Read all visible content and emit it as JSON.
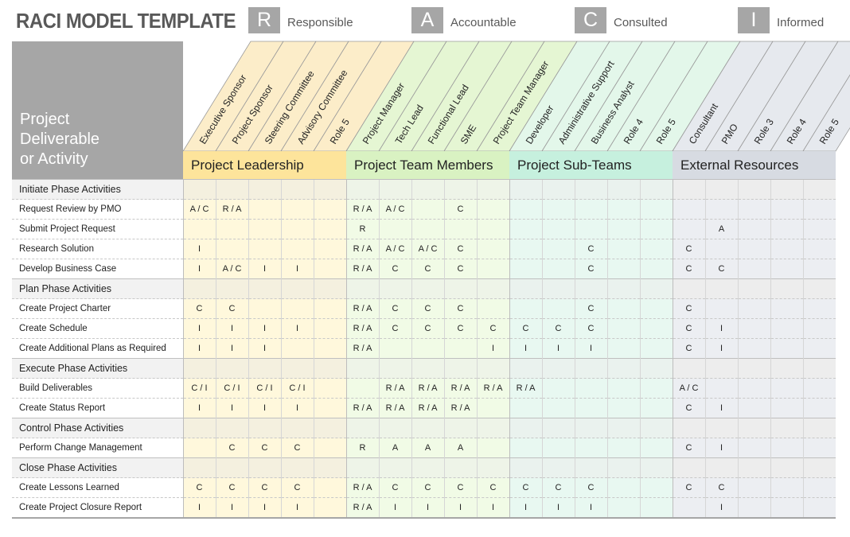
{
  "title": "RACI MODEL TEMPLATE",
  "legend": [
    {
      "letter": "R",
      "label": "Responsible"
    },
    {
      "letter": "A",
      "label": "Accountable"
    },
    {
      "letter": "C",
      "label": "Consulted"
    },
    {
      "letter": "I",
      "label": "Informed"
    }
  ],
  "corner_label": "Project\nDeliverable\nor Activity",
  "groups": [
    {
      "name": "Project Leadership",
      "color": "#fde49b",
      "tint": "#fff8dc",
      "head": "#fcedc9"
    },
    {
      "name": "Project Team Members",
      "color": "#d9f2c2",
      "tint": "#f1fbe6",
      "head": "#e5f6d3"
    },
    {
      "name": "Project Sub-Teams",
      "color": "#c6f0de",
      "tint": "#e8f8f1",
      "head": "#e3f7ea"
    },
    {
      "name": "External Resources",
      "color": "#d7dbe2",
      "tint": "#eceef2",
      "head": "#e6e9ee"
    }
  ],
  "roles": [
    "Executive Sponsor",
    "Project Sponsor",
    "Steering Committee",
    "Advisory Committee",
    "Role 5",
    "Project Manager",
    "Tech Lead",
    "Functional Lead",
    "SME",
    "Project Team Manager",
    "Developer",
    "Administrative Support",
    "Business Analyst",
    "Role 4",
    "Role 5",
    "Consultant",
    "PMO",
    "Role 3",
    "Role 4",
    "Role 5"
  ],
  "rows": [
    {
      "type": "phase",
      "label": "Initiate Phase Activities",
      "cells": []
    },
    {
      "type": "task",
      "label": "Request Review by PMO",
      "cells": [
        "A / C",
        "R / A",
        "",
        "",
        "",
        "R / A",
        "A / C",
        "",
        "C",
        "",
        "",
        "",
        "",
        "",
        "",
        "",
        "",
        "",
        "",
        ""
      ]
    },
    {
      "type": "task",
      "label": "Submit Project Request",
      "cells": [
        "",
        "",
        "",
        "",
        "",
        "R",
        "",
        "",
        "",
        "",
        "",
        "",
        "",
        "",
        "",
        "",
        "A",
        "",
        "",
        ""
      ]
    },
    {
      "type": "task",
      "label": "Research Solution",
      "cells": [
        "I",
        "",
        "",
        "",
        "",
        "R / A",
        "A / C",
        "A / C",
        "C",
        "",
        "",
        "",
        "C",
        "",
        "",
        "C",
        "",
        "",
        "",
        ""
      ]
    },
    {
      "type": "task",
      "label": "Develop Business Case",
      "cells": [
        "I",
        "A / C",
        "I",
        "I",
        "",
        "R / A",
        "C",
        "C",
        "C",
        "",
        "",
        "",
        "C",
        "",
        "",
        "C",
        "C",
        "",
        "",
        ""
      ]
    },
    {
      "type": "phase",
      "label": "Plan Phase Activities",
      "cells": []
    },
    {
      "type": "task",
      "label": "Create Project Charter",
      "cells": [
        "C",
        "C",
        "",
        "",
        "",
        "R / A",
        "C",
        "C",
        "C",
        "",
        "",
        "",
        "C",
        "",
        "",
        "C",
        "",
        "",
        "",
        ""
      ]
    },
    {
      "type": "task",
      "label": "Create Schedule",
      "cells": [
        "I",
        "I",
        "I",
        "I",
        "",
        "R / A",
        "C",
        "C",
        "C",
        "C",
        "C",
        "C",
        "C",
        "",
        "",
        "C",
        "I",
        "",
        "",
        ""
      ]
    },
    {
      "type": "task",
      "label": "Create Additional Plans as Required",
      "cells": [
        "I",
        "I",
        "I",
        "",
        "",
        "R / A",
        "",
        "",
        "",
        "I",
        "I",
        "I",
        "I",
        "",
        "",
        "C",
        "I",
        "",
        "",
        ""
      ]
    },
    {
      "type": "phase",
      "label": "Execute Phase Activities",
      "cells": []
    },
    {
      "type": "task",
      "label": "Build Deliverables",
      "cells": [
        "C / I",
        "C / I",
        "C / I",
        "C / I",
        "",
        "",
        "R / A",
        "R / A",
        "R / A",
        "R / A",
        "R / A",
        "",
        "",
        "",
        "",
        "A / C",
        "",
        "",
        "",
        ""
      ]
    },
    {
      "type": "task",
      "label": "Create Status Report",
      "cells": [
        "I",
        "I",
        "I",
        "I",
        "",
        "R / A",
        "R / A",
        "R / A",
        "R / A",
        "",
        "",
        "",
        "",
        "",
        "",
        "C",
        "I",
        "",
        "",
        ""
      ]
    },
    {
      "type": "phase",
      "label": "Control Phase Activities",
      "cells": []
    },
    {
      "type": "task",
      "label": "Perform Change Management",
      "cells": [
        "",
        "C",
        "C",
        "C",
        "",
        "R",
        "A",
        "A",
        "A",
        "",
        "",
        "",
        "",
        "",
        "",
        "C",
        "I",
        "",
        "",
        ""
      ]
    },
    {
      "type": "phase",
      "label": "Close Phase Activities",
      "cells": []
    },
    {
      "type": "task",
      "label": "Create Lessons Learned",
      "cells": [
        "C",
        "C",
        "C",
        "C",
        "",
        "R / A",
        "C",
        "C",
        "C",
        "C",
        "C",
        "C",
        "C",
        "",
        "",
        "C",
        "C",
        "",
        "",
        ""
      ]
    },
    {
      "type": "task",
      "label": "Create Project Closure Report",
      "cells": [
        "I",
        "I",
        "I",
        "I",
        "",
        "R / A",
        "I",
        "I",
        "I",
        "I",
        "I",
        "I",
        "I",
        "",
        "",
        "",
        "I",
        "",
        "",
        ""
      ]
    }
  ]
}
